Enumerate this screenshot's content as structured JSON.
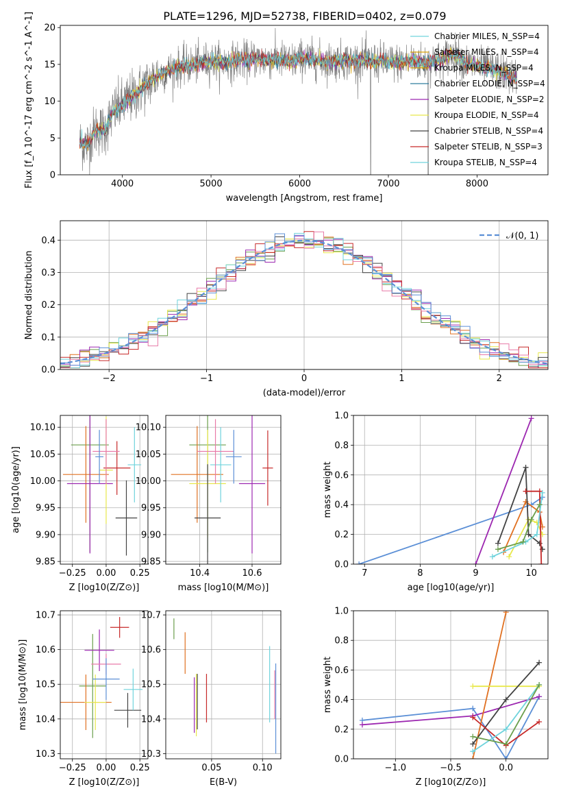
{
  "figure_title": "PLATE=1296, MJD=52738, FIBERID=0402, z=0.079",
  "colors": {
    "models": [
      "#d9a000",
      "#2e7d9e",
      "#9c27b0",
      "#e8e84a",
      "#424242",
      "#c62828",
      "#6fd3dc"
    ],
    "spectrum_data": "#808080",
    "normal_curve": "#5b8fd6",
    "post": [
      "#6a9e4b",
      "#e07020",
      "#9c27b0",
      "#e8e84a",
      "#424242",
      "#c62828",
      "#6fd3dc",
      "#e87aa8",
      "#5b8fd6",
      "#606060"
    ]
  },
  "chart_data": [
    {
      "type": "line",
      "title": "PLATE=1296, MJD=52738, FIBERID=0402, z=0.079",
      "xlabel": "wavelength [Angstrom, rest frame]",
      "ylabel": "Flux [f_λ 10^-17 erg cm^-2 s^-1 A^-1]",
      "xlim": [
        3300,
        8800
      ],
      "ylim": [
        0,
        20.3
      ],
      "xticks": [
        "4000",
        "5000",
        "6000",
        "7000",
        "8000"
      ],
      "yticks": [
        "0",
        "5",
        "10",
        "15",
        "20"
      ],
      "legend_position": "top-right",
      "legend": [
        "Chabrier MILES, N_SSP=4",
        "Salpeter MILES, N_SSP=4",
        "Kroupa MILES, N_SSP=4",
        "Chabrier ELODIE, N_SSP=4",
        "Salpeter ELODIE, N_SSP=2",
        "Kroupa ELODIE, N_SSP=4",
        "Chabrier STELIB, N_SSP=4",
        "Salpeter STELIB, N_SSP=3",
        "Kroupa STELIB, N_SSP=4"
      ],
      "x": [
        3500,
        3600,
        3700,
        3800,
        3900,
        4000,
        4100,
        4200,
        4300,
        4400,
        4500,
        4600,
        4700,
        4800,
        4900,
        5000,
        5100,
        5200,
        5300,
        5400,
        5500,
        5600,
        5700,
        5800,
        5900,
        6000,
        6100,
        6200,
        6300,
        6400,
        6500,
        6600,
        6700,
        6800,
        6900,
        7000,
        7100,
        7200,
        7300,
        7400,
        7500,
        7600,
        7700,
        7800,
        7900,
        8000,
        8100,
        8200,
        8300,
        8400,
        8500
      ],
      "y_model": [
        4.5,
        4.0,
        6.2,
        6.0,
        8.5,
        9.5,
        10.5,
        11.5,
        12.5,
        13.5,
        14.0,
        14.5,
        14.8,
        15.0,
        15.2,
        15.5,
        15.3,
        15.2,
        15.6,
        15.5,
        15.8,
        15.6,
        15.7,
        15.6,
        15.3,
        15.8,
        15.8,
        15.6,
        15.4,
        15.4,
        15.6,
        15.4,
        15.6,
        15.4,
        15.4,
        15.3,
        15.2,
        15.4,
        15.5,
        15.2,
        15.5,
        15.5,
        16.5,
        16.0,
        15.0,
        14.8,
        14.5,
        14.2,
        13.8,
        13.3,
        12.8
      ],
      "notes": "data spectrum (grey) scatters about the model; dropouts near 6800 and 7450"
    },
    {
      "type": "line",
      "xlabel": "(data-model)/error",
      "ylabel": "Normed distribution",
      "xlim": [
        -2.5,
        2.5
      ],
      "ylim": [
        0,
        0.46
      ],
      "xticks": [
        "−2",
        "−1",
        "0",
        "1",
        "2"
      ],
      "yticks": [
        "0.0",
        "0.1",
        "0.2",
        "0.3",
        "0.4"
      ],
      "legend_position": "top-right",
      "legend": [
        "𝒩(0, 1)"
      ],
      "bin_width": 0.1,
      "notes": "9 step histograms (one per model) around a dashed standard normal curve"
    },
    {
      "type": "scatter",
      "xlabel": "Z [log10(Z/Z⊙)]",
      "ylabel": "age  [log10(age/yr)]",
      "xlim": [
        -0.34,
        0.31
      ],
      "ylim": [
        9.845,
        10.122
      ],
      "xticks": [
        "−0.25",
        "0.00",
        "0.25"
      ],
      "yticks": [
        "9.85",
        "9.90",
        "9.95",
        "10.00",
        "10.05",
        "10.10"
      ],
      "errorbars": [
        {
          "x": -0.12,
          "xerr": 0.14,
          "y": 10.067,
          "yerr": 0.2
        },
        {
          "x": -0.15,
          "xerr": 0.17,
          "y": 10.012,
          "yerr": 0.09
        },
        {
          "x": -0.12,
          "xerr": 0.17,
          "y": 9.995,
          "yerr": 0.13
        },
        {
          "x": 0.0,
          "xerr": 0.05,
          "y": 10.02,
          "yerr": 0.1
        },
        {
          "x": 0.15,
          "xerr": 0.08,
          "y": 9.931,
          "yerr": 0.07
        },
        {
          "x": 0.08,
          "xerr": 0.1,
          "y": 10.024,
          "yerr": 0.05
        },
        {
          "x": 0.21,
          "xerr": 0.05,
          "y": 10.03,
          "yerr": 0.07
        },
        {
          "x": 0.0,
          "xerr": 0.1,
          "y": 10.055,
          "yerr": 0.06
        },
        {
          "x": -0.05,
          "xerr": 0.03,
          "y": 10.045,
          "yerr": 0.05
        }
      ]
    },
    {
      "type": "scatter",
      "xlabel": "mass [log10(M/M⊙)]",
      "ylabel": "",
      "xlim": [
        10.27,
        10.71
      ],
      "ylim": [
        9.845,
        10.122
      ],
      "xticks": [
        "10.4",
        "10.6"
      ],
      "yticks": [
        "9.85",
        "9.90",
        "9.95",
        "10.00",
        "10.05",
        "10.10"
      ],
      "errorbars": [
        {
          "x": 10.43,
          "xerr": 0.07,
          "y": 10.067,
          "yerr": 0.2
        },
        {
          "x": 10.39,
          "xerr": 0.1,
          "y": 10.012,
          "yerr": 0.09
        },
        {
          "x": 10.6,
          "xerr": 0.05,
          "y": 9.995,
          "yerr": 0.13
        },
        {
          "x": 10.43,
          "xerr": 0.07,
          "y": 9.995,
          "yerr": 0.1
        },
        {
          "x": 10.43,
          "xerr": 0.05,
          "y": 9.931,
          "yerr": 0.1
        },
        {
          "x": 10.66,
          "xerr": 0.02,
          "y": 10.024,
          "yerr": 0.07
        },
        {
          "x": 10.48,
          "xerr": 0.04,
          "y": 10.03,
          "yerr": 0.07
        },
        {
          "x": 10.46,
          "xerr": 0.07,
          "y": 10.055,
          "yerr": 0.06
        },
        {
          "x": 10.53,
          "xerr": 0.03,
          "y": 10.045,
          "yerr": 0.05
        }
      ]
    },
    {
      "type": "line",
      "xlabel": "age  [log10(age/yr)]",
      "ylabel": "mass weight",
      "xlim": [
        6.8,
        10.3
      ],
      "ylim": [
        0,
        1
      ],
      "xticks": [
        "7",
        "8",
        "9",
        "10"
      ],
      "yticks": [
        "0.0",
        "0.2",
        "0.4",
        "0.6",
        "0.8",
        "1.0"
      ],
      "series": [
        {
          "x": [
            6.9,
            10.0,
            10.2
          ],
          "y": [
            0.0,
            0.4,
            0.45
          ]
        },
        {
          "x": [
            9.0,
            10.0
          ],
          "y": [
            0.0,
            0.98
          ]
        },
        {
          "x": [
            9.5,
            9.9,
            10.15,
            10.2
          ],
          "y": [
            0.08,
            0.42,
            0.35,
            0.25
          ]
        },
        {
          "x": [
            9.6,
            9.95,
            10.1,
            10.2
          ],
          "y": [
            0.05,
            0.3,
            0.28,
            0.2
          ]
        },
        {
          "x": [
            9.4,
            9.9,
            9.95,
            10.15,
            10.2
          ],
          "y": [
            0.14,
            0.65,
            0.2,
            0.14,
            0.1
          ]
        },
        {
          "x": [
            9.9,
            10.15,
            10.18
          ],
          "y": [
            0.49,
            0.49,
            0.0
          ]
        },
        {
          "x": [
            9.3,
            9.9,
            10.1,
            10.2
          ],
          "y": [
            0.05,
            0.15,
            0.2,
            0.48
          ]
        },
        {
          "x": [
            9.4,
            9.85,
            10.0,
            10.15
          ],
          "y": [
            0.1,
            0.15,
            0.3,
            0.4
          ]
        }
      ]
    },
    {
      "type": "scatter",
      "xlabel": "Z [log10(Z/Z⊙)]",
      "ylabel": "mass [log10(M/M⊙)]",
      "xlim": [
        -0.34,
        0.31
      ],
      "ylim": [
        10.285,
        10.712
      ],
      "xticks": [
        "−0.25",
        "0.00",
        "0.25"
      ],
      "yticks": [
        "10.3",
        "10.4",
        "10.5",
        "10.6",
        "10.7"
      ],
      "errorbars": [
        {
          "x": -0.1,
          "xerr": 0.1,
          "y": 10.495,
          "yerr": 0.15
        },
        {
          "x": -0.15,
          "xerr": 0.19,
          "y": 10.448,
          "yerr": 0.08
        },
        {
          "x": -0.05,
          "xerr": 0.11,
          "y": 10.598,
          "yerr": 0.06
        },
        {
          "x": -0.08,
          "xerr": 0.08,
          "y": 10.448,
          "yerr": 0.08
        },
        {
          "x": 0.16,
          "xerr": 0.1,
          "y": 10.425,
          "yerr": 0.05
        },
        {
          "x": 0.1,
          "xerr": 0.07,
          "y": 10.664,
          "yerr": 0.03
        },
        {
          "x": 0.2,
          "xerr": 0.07,
          "y": 10.485,
          "yerr": 0.06
        },
        {
          "x": 0.0,
          "xerr": 0.11,
          "y": 10.558,
          "yerr": 0.03
        },
        {
          "x": 0.0,
          "xerr": 0.1,
          "y": 10.515,
          "yerr": 0.06
        }
      ]
    },
    {
      "type": "scatter",
      "xlabel": "E(B-V)",
      "ylabel": "",
      "xlim": [
        0.005,
        0.118
      ],
      "ylim": [
        10.285,
        10.712
      ],
      "xticks": [
        "0.05",
        "0.10"
      ],
      "yticks": [
        "10.3",
        "10.4",
        "10.5",
        "10.6",
        "10.7"
      ],
      "errorbars": [
        {
          "x": 0.013,
          "y": 10.66,
          "yerr": 0.03
        },
        {
          "x": 0.024,
          "y": 10.59,
          "yerr": 0.06
        },
        {
          "x": 0.033,
          "y": 10.44,
          "yerr": 0.08
        },
        {
          "x": 0.035,
          "y": 10.44,
          "yerr": 0.09
        },
        {
          "x": 0.036,
          "y": 10.45,
          "yerr": 0.08
        },
        {
          "x": 0.045,
          "y": 10.46,
          "yerr": 0.07
        },
        {
          "x": 0.107,
          "y": 10.5,
          "yerr": 0.11
        },
        {
          "x": 0.112,
          "y": 10.47,
          "yerr": 0.07
        },
        {
          "x": 0.113,
          "y": 10.43,
          "yerr": 0.13
        }
      ]
    },
    {
      "type": "line",
      "xlabel": "Z [log10(Z/Z⊙)]",
      "ylabel": "mass weight",
      "xlim": [
        -1.38,
        0.38
      ],
      "ylim": [
        0,
        1
      ],
      "xticks": [
        "−1.0",
        "−0.5",
        "0.0"
      ],
      "yticks": [
        "0.0",
        "0.2",
        "0.4",
        "0.6",
        "0.8",
        "1.0"
      ],
      "series": [
        {
          "x": [
            -1.3,
            -0.3,
            0.0,
            0.3
          ],
          "y": [
            0.26,
            0.34,
            0.0,
            0.42
          ]
        },
        {
          "x": [
            -1.3,
            -0.3,
            0.3
          ],
          "y": [
            0.23,
            0.29,
            0.42
          ]
        },
        {
          "x": [
            -0.3,
            0.0
          ],
          "y": [
            0.0,
            0.99
          ]
        },
        {
          "x": [
            -0.3,
            0.3
          ],
          "y": [
            0.49,
            0.49
          ]
        },
        {
          "x": [
            -0.3,
            0.0,
            0.3
          ],
          "y": [
            0.1,
            0.4,
            0.65
          ]
        },
        {
          "x": [
            -0.3,
            0.0,
            0.3
          ],
          "y": [
            0.28,
            0.09,
            0.25
          ]
        },
        {
          "x": [
            -0.3,
            0.0,
            0.3
          ],
          "y": [
            0.05,
            0.2,
            0.5
          ]
        },
        {
          "x": [
            -0.3,
            0.0,
            0.3
          ],
          "y": [
            0.15,
            0.1,
            0.5
          ]
        }
      ]
    }
  ]
}
